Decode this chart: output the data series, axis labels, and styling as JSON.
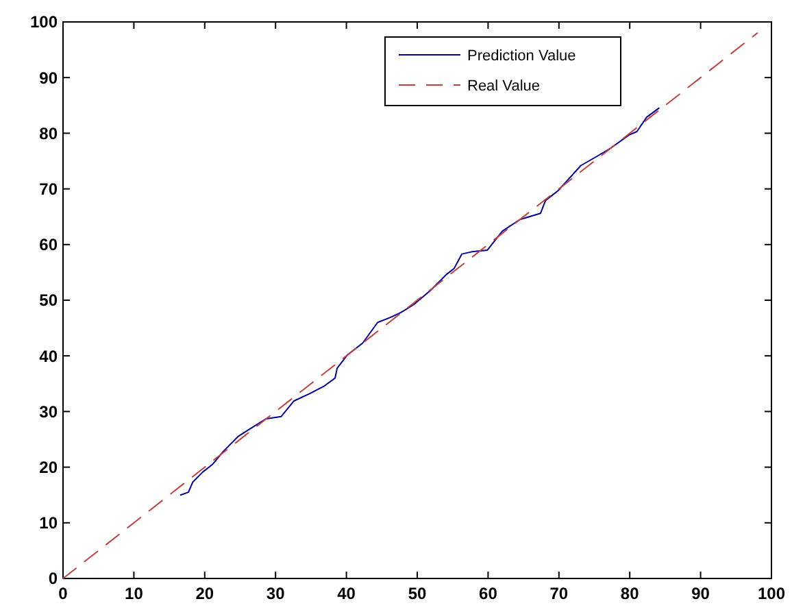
{
  "chart_data": {
    "type": "line",
    "xlim": [
      0,
      100
    ],
    "ylim": [
      0,
      100
    ],
    "xticks": [
      0,
      10,
      20,
      30,
      40,
      50,
      60,
      70,
      80,
      90,
      100
    ],
    "yticks": [
      0,
      10,
      20,
      30,
      40,
      50,
      60,
      70,
      80,
      90,
      100
    ],
    "grid": false,
    "legend": "top right",
    "series": [
      {
        "name": "Prediction Value",
        "color": "#0000a0",
        "line_style": "solid",
        "x": [
          16.6,
          17.7,
          18.3,
          19.7,
          21.1,
          22.6,
          24.7,
          26.9,
          28.7,
          30.8,
          32.6,
          34.8,
          36.9,
          38.4,
          38.7,
          40.1,
          42.3,
          44.4,
          46.2,
          47.7,
          49.5,
          52.0,
          54.1,
          55.2,
          56.3,
          57.7,
          59.9,
          62.0,
          64.5,
          67.4,
          68.1,
          69.9,
          73.1,
          75.3,
          77.4,
          79.9,
          81.0,
          82.4,
          84.1
        ],
        "values": [
          15.0,
          15.5,
          17.3,
          19.1,
          20.5,
          22.8,
          25.5,
          27.3,
          28.7,
          29.1,
          31.9,
          33.2,
          34.6,
          36.0,
          37.8,
          40.1,
          42.3,
          46.0,
          46.9,
          47.8,
          49.2,
          51.9,
          54.6,
          55.7,
          58.3,
          58.7,
          59.0,
          62.4,
          64.5,
          65.6,
          67.9,
          69.7,
          74.2,
          75.8,
          77.4,
          79.7,
          80.3,
          82.9,
          84.5
        ]
      },
      {
        "name": "Real Value",
        "color": "#c04040",
        "line_style": "dashed",
        "x": [
          0,
          98
        ],
        "values": [
          0,
          98
        ]
      }
    ]
  }
}
